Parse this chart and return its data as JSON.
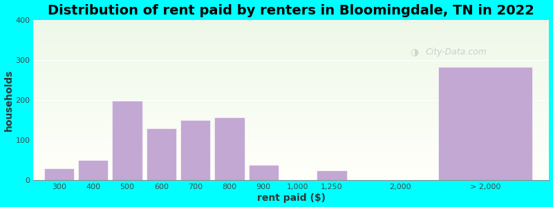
{
  "title": "Distribution of rent paid by renters in Bloomingdale, TN in 2022",
  "xlabel": "rent paid ($)",
  "ylabel": "households",
  "bar_color": "#c4a8d4",
  "outer_background": "#00ffff",
  "categories": [
    "300",
    "400",
    "500",
    "600",
    "700",
    "800",
    "900",
    "1,000",
    "1,250",
    "2,000",
    "> 2,000"
  ],
  "values": [
    30,
    50,
    198,
    130,
    150,
    158,
    38,
    0,
    25,
    0,
    282
  ],
  "ylim": [
    0,
    400
  ],
  "yticks": [
    0,
    100,
    200,
    300,
    400
  ],
  "title_fontsize": 14,
  "axis_label_fontsize": 10,
  "tick_fontsize": 8,
  "watermark": "City-Data.com",
  "bar_positions": [
    0.5,
    1.3,
    2.1,
    2.9,
    3.7,
    4.5,
    5.3,
    6.1,
    6.9,
    8.5,
    10.5
  ],
  "bar_widths": [
    0.7,
    0.7,
    0.7,
    0.7,
    0.7,
    0.7,
    0.7,
    0.7,
    0.7,
    0.1,
    2.2
  ],
  "xlim": [
    -0.1,
    12.0
  ]
}
